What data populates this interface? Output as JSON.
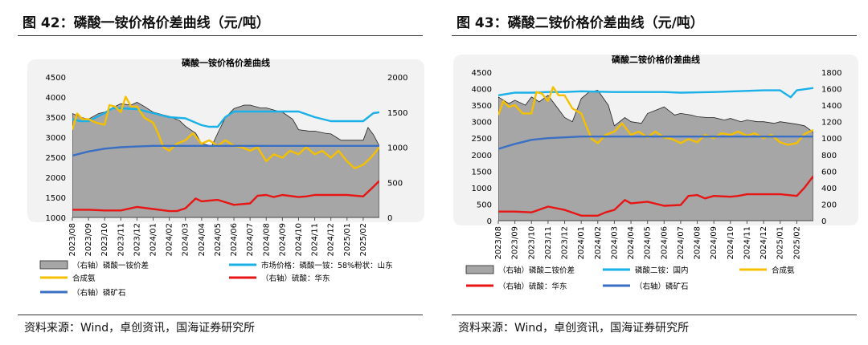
{
  "fig42": {
    "title": "图 42：磷酸一铵价格价差曲线（元/吨）",
    "source": "资料来源：Wind，卓创资讯，国海证券研究所"
  },
  "fig43": {
    "title": "图 43：磷酸二铵价格价差曲线（元/吨）",
    "source": "资料来源：Wind，卓创资讯，国海证券研究所"
  },
  "colors": {
    "spread_fill": "#a6a6a6",
    "market_price": "#1ab0e8",
    "ammonia": "#f5c000",
    "sulfuric_acid": "#e81515",
    "phosphate_rock": "#3a6fc4"
  },
  "chart_data": [
    {
      "type": "line",
      "title": "磷酸一铵价格价差曲线",
      "x_ticks": [
        "2023/08",
        "2023/09",
        "2023/10",
        "2023/11",
        "2023/12",
        "2024/01",
        "2024/02",
        "2024/03",
        "2024/04",
        "2024/05",
        "2024/06",
        "2024/07",
        "2024/08",
        "2024/09",
        "2024/10",
        "2024/11",
        "2024/12",
        "2025/01",
        "2025/02"
      ],
      "xlim": [
        "2023/08",
        "2025/03"
      ],
      "left_axis": {
        "ylim": [
          1000,
          4500
        ],
        "ticks": [
          "1000",
          "1500",
          "2000",
          "2500",
          "3000",
          "3500",
          "4000",
          "4500"
        ]
      },
      "right_axis": {
        "ylim": [
          0,
          2000
        ],
        "ticks": [
          "0",
          "500",
          "1000",
          "1500",
          "2000"
        ]
      },
      "series": [
        {
          "name": "（右轴）磷酸一铵价差",
          "key": "spread",
          "axis": "right",
          "kind": "area",
          "x": [
            "2023/08",
            "2023/08/20",
            "2023/09",
            "2023/09/20",
            "2023/10",
            "2023/10/15",
            "2023/11",
            "2023/11/20",
            "2023/12",
            "2023/12/15",
            "2024/01",
            "2024/01/20",
            "2024/02",
            "2024/02/20",
            "2024/03",
            "2024/03/20",
            "2024/04",
            "2024/04/20",
            "2024/05",
            "2024/05/15",
            "2024/06",
            "2024/06/20",
            "2024/07",
            "2024/07/20",
            "2024/08",
            "2024/08/20",
            "2024/09",
            "2024/09/20",
            "2024/10",
            "2024/10/20",
            "2024/11",
            "2024/11/20",
            "2024/12",
            "2024/12/20",
            "2025/01",
            "2025/01/20",
            "2025/02",
            "2025/02/10",
            "2025/02/20",
            "2025/03"
          ],
          "values": [
            1480,
            1420,
            1400,
            1480,
            1500,
            1560,
            1620,
            1600,
            1640,
            1580,
            1500,
            1460,
            1440,
            1380,
            1300,
            1200,
            1050,
            1020,
            1200,
            1420,
            1550,
            1600,
            1600,
            1560,
            1560,
            1520,
            1500,
            1400,
            1250,
            1230,
            1230,
            1200,
            1190,
            1100,
            1100,
            1100,
            1100,
            1280,
            1180,
            1020
          ]
        },
        {
          "name": "市场价格：磷酸一铵：58%粉状：山东",
          "key": "market",
          "axis": "left",
          "x": [
            "2023/08",
            "2023/08/15",
            "2023/09",
            "2023/10",
            "2023/10/15",
            "2023/11",
            "2023/12",
            "2024/01",
            "2024/02",
            "2024/03",
            "2024/04",
            "2024/04/15",
            "2024/05",
            "2024/05/15",
            "2024/06",
            "2024/07",
            "2024/08",
            "2024/09",
            "2024/10",
            "2024/11",
            "2024/12",
            "2025/01",
            "2025/02",
            "2025/02/20",
            "2025/03"
          ],
          "values": [
            3450,
            3400,
            3400,
            3600,
            3720,
            3720,
            3700,
            3600,
            3500,
            3470,
            3300,
            3260,
            3260,
            3500,
            3640,
            3640,
            3640,
            3640,
            3640,
            3500,
            3400,
            3400,
            3400,
            3600,
            3620
          ]
        },
        {
          "name": "合成氨",
          "key": "ammonia",
          "axis": "right",
          "x": [
            "2023/08",
            "2023/08/10",
            "2023/08/20",
            "2023/09",
            "2023/09/15",
            "2023/10",
            "2023/10/10",
            "2023/10/20",
            "2023/11",
            "2023/11/10",
            "2023/11/20",
            "2023/12",
            "2023/12/15",
            "2024/01",
            "2024/01/10",
            "2024/01/20",
            "2024/02",
            "2024/02/15",
            "2024/03",
            "2024/03/15",
            "2024/04",
            "2024/04/15",
            "2024/05",
            "2024/05/15",
            "2024/06",
            "2024/06/15",
            "2024/07",
            "2024/07/15",
            "2024/08",
            "2024/08/15",
            "2024/09",
            "2024/09/15",
            "2024/10",
            "2024/10/15",
            "2024/11",
            "2024/11/15",
            "2024/12",
            "2024/12/15",
            "2025/01",
            "2025/01/15",
            "2025/02",
            "2025/02/15",
            "2025/03"
          ],
          "values": [
            1250,
            1480,
            1400,
            1400,
            1350,
            1320,
            1600,
            1580,
            1500,
            1720,
            1580,
            1580,
            1420,
            1350,
            1200,
            1000,
            950,
            1050,
            1100,
            1200,
            1050,
            1100,
            1020,
            1100,
            1020,
            1000,
            950,
            1000,
            800,
            900,
            850,
            950,
            900,
            1000,
            900,
            950,
            850,
            950,
            800,
            700,
            750,
            850,
            1000
          ]
        },
        {
          "name": "（右轴）硫酸：华东",
          "key": "sulfuric",
          "axis": "right",
          "x": [
            "2023/08",
            "2023/09",
            "2023/10",
            "2023/11",
            "2023/12",
            "2024/01",
            "2024/02",
            "2024/02/15",
            "2024/03",
            "2024/03/20",
            "2024/04",
            "2024/05",
            "2024/06",
            "2024/07",
            "2024/07/15",
            "2024/08",
            "2024/08/15",
            "2024/09",
            "2024/10",
            "2024/10/15",
            "2024/11",
            "2024/12",
            "2025/01",
            "2025/02",
            "2025/02/15",
            "2025/03"
          ],
          "values": [
            110,
            110,
            100,
            100,
            150,
            120,
            90,
            90,
            130,
            270,
            230,
            250,
            180,
            200,
            310,
            320,
            290,
            320,
            290,
            300,
            320,
            320,
            320,
            300,
            400,
            520
          ]
        },
        {
          "name": "（右轴）磷矿石",
          "key": "rock",
          "axis": "right",
          "x": [
            "2023/08",
            "2023/09",
            "2023/10",
            "2023/11",
            "2023/12",
            "2024/01",
            "2024/06",
            "2025/03"
          ],
          "values": [
            880,
            940,
            980,
            1000,
            1010,
            1020,
            1020,
            1020
          ]
        }
      ],
      "legend_placement": "bottom"
    },
    {
      "type": "line",
      "title": "磷酸二铵价格价差曲线",
      "x_ticks": [
        "2023/08",
        "2023/09",
        "2023/10",
        "2023/11",
        "2023/12",
        "2024/01",
        "2024/02",
        "2024/03",
        "2024/04",
        "2024/05",
        "2024/06",
        "2024/07",
        "2024/08",
        "2024/09",
        "2024/10",
        "2024/11",
        "2024/12",
        "2025/01",
        "2025/02"
      ],
      "xlim": [
        "2023/08",
        "2025/03"
      ],
      "left_axis": {
        "ylim": [
          0,
          4500
        ],
        "ticks": [
          "0",
          "500",
          "1000",
          "1500",
          "2000",
          "2500",
          "3000",
          "3500",
          "4000",
          "4500"
        ]
      },
      "right_axis": {
        "ylim": [
          0,
          1800
        ],
        "ticks": [
          "0",
          "200",
          "400",
          "600",
          "800",
          "1000",
          "1200",
          "1400",
          "1600",
          "1800"
        ]
      },
      "series": [
        {
          "name": "（右轴）磷酸二铵价差",
          "key": "spread",
          "axis": "right",
          "kind": "area",
          "x": [
            "2023/08",
            "2023/08/20",
            "2023/09",
            "2023/09/20",
            "2023/10",
            "2023/10/15",
            "2023/11",
            "2023/11/20",
            "2023/12",
            "2023/12/15",
            "2024/01",
            "2024/01/15",
            "2024/02",
            "2024/02/20",
            "2024/03",
            "2024/03/20",
            "2024/04",
            "2024/04/20",
            "2024/05",
            "2024/05/20",
            "2024/06",
            "2024/06/20",
            "2024/07",
            "2024/07/20",
            "2024/08",
            "2024/08/20",
            "2024/09",
            "2024/09/20",
            "2024/10",
            "2024/10/20",
            "2024/11",
            "2024/11/20",
            "2024/12",
            "2024/12/20",
            "2025/01",
            "2025/01/20",
            "2025/02",
            "2025/02/15",
            "2025/03"
          ],
          "values": [
            1500,
            1420,
            1460,
            1400,
            1500,
            1440,
            1520,
            1350,
            1250,
            1200,
            1480,
            1560,
            1580,
            1400,
            1150,
            1250,
            1200,
            1180,
            1300,
            1350,
            1380,
            1280,
            1300,
            1280,
            1260,
            1250,
            1250,
            1220,
            1240,
            1200,
            1220,
            1200,
            1200,
            1180,
            1200,
            1180,
            1170,
            1150,
            1070
          ]
        },
        {
          "name": "磷酸二铵：国内",
          "key": "market",
          "axis": "left",
          "x": [
            "2023/08",
            "2023/09",
            "2023/10",
            "2023/11",
            "2023/12",
            "2024/01",
            "2024/03",
            "2024/06",
            "2024/07",
            "2024/09",
            "2024/12",
            "2025/01",
            "2025/01/20",
            "2025/02",
            "2025/03"
          ],
          "values": [
            3800,
            3880,
            3880,
            3900,
            3900,
            3920,
            3900,
            3900,
            3880,
            3900,
            3950,
            3950,
            3740,
            3950,
            4020
          ]
        },
        {
          "name": "合成氨",
          "key": "ammonia",
          "axis": "right",
          "x": [
            "2023/08",
            "2023/08/10",
            "2023/08/20",
            "2023/09",
            "2023/09/15",
            "2023/10",
            "2023/10/10",
            "2023/10/20",
            "2023/11",
            "2023/11/10",
            "2023/11/20",
            "2023/12",
            "2023/12/15",
            "2024/01",
            "2024/01/10",
            "2024/01/20",
            "2024/02",
            "2024/02/15",
            "2024/03",
            "2024/03/15",
            "2024/04",
            "2024/04/15",
            "2024/05",
            "2024/05/15",
            "2024/06",
            "2024/06/15",
            "2024/07",
            "2024/07/15",
            "2024/08",
            "2024/08/15",
            "2024/09",
            "2024/09/15",
            "2024/10",
            "2024/10/15",
            "2024/11",
            "2024/11/15",
            "2024/12",
            "2024/12/15",
            "2025/01",
            "2025/01/15",
            "2025/02",
            "2025/02/15",
            "2025/03"
          ],
          "values": [
            1280,
            1450,
            1380,
            1400,
            1300,
            1300,
            1560,
            1540,
            1450,
            1620,
            1520,
            1520,
            1360,
            1300,
            1150,
            990,
            940,
            1040,
            1080,
            1180,
            1040,
            1080,
            1010,
            1080,
            1010,
            990,
            940,
            990,
            950,
            1040,
            1000,
            1060,
            1040,
            1080,
            1030,
            1060,
            1000,
            1040,
            950,
            920,
            940,
            1050,
            1100
          ]
        },
        {
          "name": "（右轴）硫酸：华东",
          "key": "sulfuric",
          "axis": "right",
          "x": [
            "2023/08",
            "2023/09",
            "2023/10",
            "2023/11",
            "2023/12",
            "2024/01",
            "2024/02",
            "2024/02/15",
            "2024/03",
            "2024/03/20",
            "2024/04",
            "2024/05",
            "2024/06",
            "2024/07",
            "2024/07/15",
            "2024/08",
            "2024/08/15",
            "2024/09",
            "2024/10",
            "2024/10/15",
            "2024/11",
            "2024/12",
            "2025/01",
            "2025/02",
            "2025/02/15",
            "2025/03"
          ],
          "values": [
            110,
            110,
            100,
            170,
            130,
            60,
            60,
            100,
            130,
            250,
            210,
            230,
            180,
            190,
            300,
            310,
            270,
            300,
            290,
            300,
            320,
            320,
            320,
            300,
            400,
            540
          ]
        },
        {
          "name": "（右轴）磷矿石",
          "key": "rock",
          "axis": "right",
          "x": [
            "2023/08",
            "2023/09",
            "2023/10",
            "2023/11",
            "2023/12",
            "2024/01",
            "2024/06",
            "2025/03"
          ],
          "values": [
            870,
            930,
            980,
            1000,
            1010,
            1020,
            1020,
            1020
          ]
        }
      ],
      "legend_placement": "bottom"
    }
  ]
}
